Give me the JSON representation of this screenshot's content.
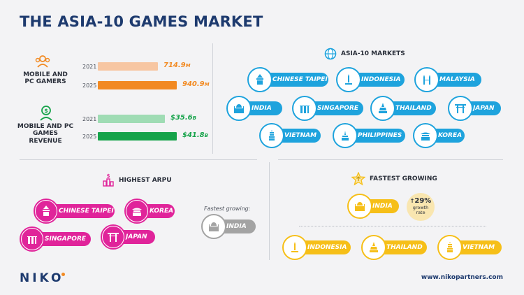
{
  "title": "THE ASIA-10 GAMES MARKET",
  "stats": {
    "gamers": {
      "label_line1": "MOBILE AND",
      "label_line2": "PC GAMERS",
      "rows": [
        {
          "year": "2021",
          "value": "714.9",
          "unit": "M",
          "amount": 714.9,
          "color": "#f7c6a2"
        },
        {
          "year": "2025",
          "value": "940.9",
          "unit": "M",
          "amount": 940.9,
          "color": "#f28a22"
        }
      ]
    },
    "revenue": {
      "label_line1": "MOBILE AND PC",
      "label_line2": "GAMES REVENUE",
      "rows": [
        {
          "year": "2021",
          "value": "$35.6",
          "unit": "B",
          "amount": 35.6,
          "color": "#9fdcb4"
        },
        {
          "year": "2025",
          "value": "$41.8",
          "unit": "B",
          "amount": 41.8,
          "color": "#16a34a"
        }
      ]
    }
  },
  "markets": {
    "heading": "ASIA-10 MARKETS",
    "items": [
      "CHINESE TAIPEI",
      "INDONESIA",
      "MALAYSIA",
      "INDIA",
      "SINGAPORE",
      "THAILAND",
      "JAPAN",
      "VIETNAM",
      "PHILIPPINES",
      "KOREA"
    ]
  },
  "arpu": {
    "heading": "HIGHEST ARPU",
    "items": [
      "CHINESE TAIPEI",
      "KOREA",
      "SINGAPORE",
      "JAPAN"
    ],
    "fastest_label": "Fastest growing:",
    "fastest_item": "INDIA"
  },
  "growing": {
    "heading": "FASTEST GROWING",
    "top_item": "INDIA",
    "growth_value": "29%",
    "growth_line1": "growth",
    "growth_line2": "rate",
    "items": [
      "INDONESIA",
      "THAILAND",
      "VIETNAM"
    ]
  },
  "footer": {
    "logo": "NIKO",
    "url": "www.nikopartners.com"
  },
  "colors": {
    "brand_navy": "#1d3a6e",
    "markets_blue": "#1ea3dd",
    "arpu_pink": "#e0249a",
    "growing_gold": "#f6bf18",
    "inactive_grey": "#a3a3a3"
  }
}
